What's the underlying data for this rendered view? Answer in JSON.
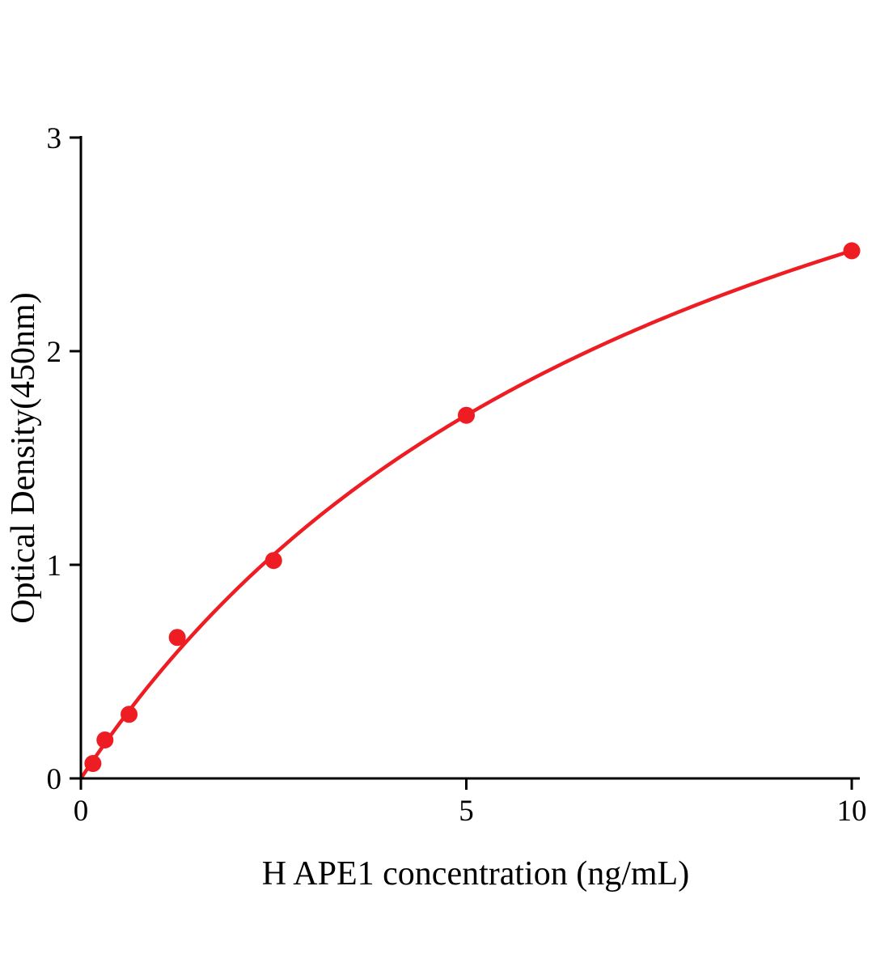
{
  "chart_data": {
    "type": "scatter",
    "title": "",
    "xlabel": "H APE1 concentration (ng/mL)",
    "ylabel": "Optical Density(450nm)",
    "x": [
      0.156,
      0.3125,
      0.625,
      1.25,
      2.5,
      5,
      10
    ],
    "y": [
      0.07,
      0.18,
      0.3,
      0.66,
      1.02,
      1.7,
      2.47
    ],
    "xlim": [
      0,
      10
    ],
    "ylim": [
      0,
      3
    ],
    "xticks": [
      0,
      5,
      10
    ],
    "yticks": [
      0,
      1,
      2,
      3
    ],
    "grid": false,
    "legend": "none",
    "marker_color": "#ee1c23",
    "line_color": "#ee1c23",
    "axis_color": "#000000",
    "fit_curve": {
      "type": "hyperbolic",
      "a": 4.515,
      "b": 8.28
    }
  }
}
